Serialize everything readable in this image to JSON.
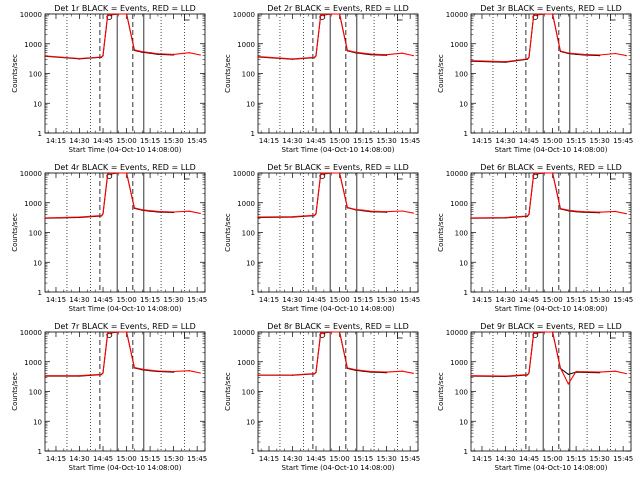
{
  "chart_data": [
    {
      "type": "line",
      "title": "Det 1r BLACK = Events, RED = LLD",
      "xlabel": "Start Time (04-Oct-10 14:08:00)",
      "ylabel": "Counts/sec",
      "y_scale": "log",
      "ylim": [
        1,
        10000
      ],
      "xlim": [
        "14:08",
        "15:50"
      ],
      "xtick_labels": [
        "14:15",
        "14:30",
        "14:45",
        "15:00",
        "15:15",
        "15:30",
        "15:45"
      ],
      "ytick_labels": [
        "1",
        "10",
        "100",
        "1000",
        "10000"
      ],
      "series": [
        {
          "color": "#000000",
          "x": [
            "14:08",
            "14:30",
            "14:44",
            "14:45",
            "14:48",
            "14:55",
            "15:00",
            "15:05",
            "15:10",
            "15:15",
            "15:20",
            "15:30"
          ],
          "values": [
            380,
            310,
            350,
            400,
            9000,
            10000,
            10000,
            600,
            520,
            480,
            440,
            420
          ]
        },
        {
          "color": "#ff0000",
          "x": [
            "14:08",
            "14:30",
            "14:44",
            "14:45",
            "14:48",
            "14:55",
            "15:00",
            "15:05",
            "15:10",
            "15:15",
            "15:20",
            "15:30",
            "15:40",
            "15:47"
          ],
          "values": [
            390,
            320,
            360,
            410,
            9500,
            10000,
            10000,
            620,
            540,
            500,
            460,
            440,
            500,
            420
          ]
        }
      ]
    },
    {
      "type": "line",
      "title": "Det 2r BLACK = Events, RED = LLD",
      "xlabel": "Start Time (04-Oct-10 14:08:00)",
      "ylabel": "Counts/sec",
      "y_scale": "log",
      "ylim": [
        1,
        10000
      ],
      "xlim": [
        "14:08",
        "15:50"
      ],
      "xtick_labels": [
        "14:15",
        "14:30",
        "14:45",
        "15:00",
        "15:15",
        "15:30",
        "15:45"
      ],
      "ytick_labels": [
        "1",
        "10",
        "100",
        "1000",
        "10000"
      ],
      "series": [
        {
          "color": "#000000",
          "x": [
            "14:08",
            "14:30",
            "14:44",
            "14:45",
            "14:48",
            "14:55",
            "15:00",
            "15:05",
            "15:10",
            "15:15",
            "15:20",
            "15:30"
          ],
          "values": [
            360,
            300,
            340,
            390,
            9000,
            10000,
            10000,
            580,
            500,
            460,
            430,
            410
          ]
        },
        {
          "color": "#ff0000",
          "x": [
            "14:08",
            "14:30",
            "14:44",
            "14:45",
            "14:48",
            "14:55",
            "15:00",
            "15:05",
            "15:10",
            "15:15",
            "15:20",
            "15:30",
            "15:40",
            "15:47"
          ],
          "values": [
            370,
            310,
            350,
            400,
            9500,
            10000,
            10000,
            600,
            520,
            480,
            450,
            430,
            480,
            400
          ]
        }
      ]
    },
    {
      "type": "line",
      "title": "Det 3r BLACK = Events, RED = LLD",
      "xlabel": "Start Time (04-Oct-10 14:08:00)",
      "ylabel": "Counts/sec",
      "y_scale": "log",
      "ylim": [
        1,
        10000
      ],
      "xlim": [
        "14:08",
        "15:50"
      ],
      "xtick_labels": [
        "14:15",
        "14:30",
        "14:45",
        "15:00",
        "15:15",
        "15:30",
        "15:45"
      ],
      "ytick_labels": [
        "1",
        "10",
        "100",
        "1000",
        "10000"
      ],
      "series": [
        {
          "color": "#000000",
          "x": [
            "14:08",
            "14:30",
            "14:44",
            "14:45",
            "14:48",
            "14:55",
            "15:00",
            "15:05",
            "15:10",
            "15:15",
            "15:20",
            "15:30"
          ],
          "values": [
            260,
            240,
            300,
            350,
            9000,
            10000,
            10000,
            550,
            470,
            440,
            420,
            400
          ]
        },
        {
          "color": "#ff0000",
          "x": [
            "14:08",
            "14:30",
            "14:44",
            "14:45",
            "14:48",
            "14:55",
            "15:00",
            "15:05",
            "15:10",
            "15:15",
            "15:20",
            "15:30",
            "15:40",
            "15:47"
          ],
          "values": [
            270,
            250,
            310,
            360,
            9500,
            10000,
            10000,
            570,
            490,
            460,
            440,
            420,
            470,
            400
          ]
        }
      ]
    },
    {
      "type": "line",
      "title": "Det 4r BLACK = Events, RED = LLD",
      "xlabel": "Start Time (04-Oct-10 14:08:00)",
      "ylabel": "Counts/sec",
      "y_scale": "log",
      "ylim": [
        1,
        10000
      ],
      "xlim": [
        "14:08",
        "15:50"
      ],
      "xtick_labels": [
        "14:15",
        "14:30",
        "14:45",
        "15:00",
        "15:15",
        "15:30",
        "15:45"
      ],
      "ytick_labels": [
        "1",
        "10",
        "100",
        "1000",
        "10000"
      ],
      "series": [
        {
          "color": "#000000",
          "x": [
            "14:08",
            "14:30",
            "14:44",
            "14:45",
            "14:48",
            "14:55",
            "15:00",
            "15:05",
            "15:10",
            "15:15",
            "15:20",
            "15:30"
          ],
          "values": [
            300,
            320,
            360,
            420,
            9000,
            10000,
            10000,
            650,
            560,
            520,
            490,
            470
          ]
        },
        {
          "color": "#ff0000",
          "x": [
            "14:08",
            "14:30",
            "14:44",
            "14:45",
            "14:48",
            "14:55",
            "15:00",
            "15:05",
            "15:10",
            "15:15",
            "15:20",
            "15:30",
            "15:40",
            "15:47"
          ],
          "values": [
            310,
            330,
            370,
            430,
            9500,
            10000,
            10000,
            670,
            580,
            540,
            510,
            490,
            520,
            440
          ]
        }
      ]
    },
    {
      "type": "line",
      "title": "Det 5r BLACK = Events, RED = LLD",
      "xlabel": "Start Time (04-Oct-10 14:08:00)",
      "ylabel": "Counts/sec",
      "y_scale": "log",
      "ylim": [
        1,
        10000
      ],
      "xlim": [
        "14:08",
        "15:50"
      ],
      "xtick_labels": [
        "14:15",
        "14:30",
        "14:45",
        "15:00",
        "15:15",
        "15:30",
        "15:45"
      ],
      "ytick_labels": [
        "1",
        "10",
        "100",
        "1000",
        "10000"
      ],
      "series": [
        {
          "color": "#000000",
          "x": [
            "14:08",
            "14:30",
            "14:44",
            "14:45",
            "14:48",
            "14:55",
            "15:00",
            "15:05",
            "15:10",
            "15:15",
            "15:20",
            "15:30"
          ],
          "values": [
            320,
            330,
            370,
            430,
            9000,
            10000,
            10000,
            680,
            580,
            540,
            500,
            480
          ]
        },
        {
          "color": "#ff0000",
          "x": [
            "14:08",
            "14:30",
            "14:44",
            "14:45",
            "14:48",
            "14:55",
            "15:00",
            "15:05",
            "15:10",
            "15:15",
            "15:20",
            "15:30",
            "15:40",
            "15:47"
          ],
          "values": [
            330,
            340,
            380,
            440,
            9500,
            10000,
            10000,
            700,
            600,
            560,
            520,
            500,
            530,
            450
          ]
        }
      ]
    },
    {
      "type": "line",
      "title": "Det 6r BLACK = Events, RED = LLD",
      "xlabel": "Start Time (04-Oct-10 14:08:00)",
      "ylabel": "Counts/sec",
      "y_scale": "log",
      "ylim": [
        1,
        10000
      ],
      "xlim": [
        "14:08",
        "15:50"
      ],
      "xtick_labels": [
        "14:15",
        "14:30",
        "14:45",
        "15:00",
        "15:15",
        "15:30",
        "15:45"
      ],
      "ytick_labels": [
        "1",
        "10",
        "100",
        "1000",
        "10000"
      ],
      "series": [
        {
          "color": "#000000",
          "x": [
            "14:08",
            "14:30",
            "14:44",
            "14:45",
            "14:48",
            "14:55",
            "15:00",
            "15:05",
            "15:10",
            "15:15",
            "15:20",
            "15:30"
          ],
          "values": [
            300,
            310,
            350,
            410,
            9000,
            10000,
            10000,
            620,
            540,
            500,
            480,
            460
          ]
        },
        {
          "color": "#ff0000",
          "x": [
            "14:08",
            "14:30",
            "14:44",
            "14:45",
            "14:48",
            "14:55",
            "15:00",
            "15:05",
            "15:10",
            "15:15",
            "15:20",
            "15:30",
            "15:40",
            "15:47"
          ],
          "values": [
            310,
            320,
            360,
            420,
            9500,
            10000,
            10000,
            640,
            560,
            520,
            500,
            480,
            510,
            430
          ]
        }
      ]
    },
    {
      "type": "line",
      "title": "Det 7r BLACK = Events, RED = LLD",
      "xlabel": "Start Time (04-Oct-10 14:08:00)",
      "ylabel": "Counts/sec",
      "y_scale": "log",
      "ylim": [
        1,
        10000
      ],
      "xlim": [
        "14:08",
        "15:50"
      ],
      "xtick_labels": [
        "14:15",
        "14:30",
        "14:45",
        "15:00",
        "15:15",
        "15:30",
        "15:45"
      ],
      "ytick_labels": [
        "1",
        "10",
        "100",
        "1000",
        "10000"
      ],
      "series": [
        {
          "color": "#000000",
          "x": [
            "14:08",
            "14:30",
            "14:44",
            "14:45",
            "14:48",
            "14:55",
            "15:00",
            "15:05",
            "15:10",
            "15:15",
            "15:20",
            "15:30"
          ],
          "values": [
            330,
            330,
            370,
            420,
            9000,
            10000,
            10000,
            620,
            540,
            500,
            470,
            450
          ]
        },
        {
          "color": "#ff0000",
          "x": [
            "14:08",
            "14:30",
            "14:44",
            "14:45",
            "14:48",
            "14:55",
            "15:00",
            "15:05",
            "15:10",
            "15:15",
            "15:20",
            "15:30",
            "15:40",
            "15:47"
          ],
          "values": [
            340,
            340,
            380,
            430,
            9500,
            10000,
            10000,
            640,
            560,
            520,
            490,
            470,
            500,
            420
          ]
        }
      ]
    },
    {
      "type": "line",
      "title": "Det 8r BLACK = Events, RED = LLD",
      "xlabel": "Start Time (04-Oct-10 14:08:00)",
      "ylabel": "Counts/sec",
      "y_scale": "log",
      "ylim": [
        1,
        10000
      ],
      "xlim": [
        "14:08",
        "15:50"
      ],
      "xtick_labels": [
        "14:15",
        "14:30",
        "14:45",
        "15:00",
        "15:15",
        "15:30",
        "15:45"
      ],
      "ytick_labels": [
        "1",
        "10",
        "100",
        "1000",
        "10000"
      ],
      "series": [
        {
          "color": "#000000",
          "x": [
            "14:08",
            "14:30",
            "14:44",
            "14:45",
            "14:48",
            "14:55",
            "15:00",
            "15:05",
            "15:10",
            "15:15",
            "15:20",
            "15:30"
          ],
          "values": [
            350,
            350,
            390,
            440,
            9000,
            10000,
            10000,
            600,
            520,
            480,
            450,
            430
          ]
        },
        {
          "color": "#ff0000",
          "x": [
            "14:08",
            "14:30",
            "14:44",
            "14:45",
            "14:48",
            "14:55",
            "15:00",
            "15:05",
            "15:10",
            "15:15",
            "15:20",
            "15:30",
            "15:40",
            "15:47"
          ],
          "values": [
            360,
            360,
            400,
            450,
            9500,
            10000,
            10000,
            620,
            540,
            500,
            470,
            450,
            480,
            410
          ]
        }
      ]
    },
    {
      "type": "line",
      "title": "Det 9r BLACK = Events, RED = LLD",
      "xlabel": "Start Time (04-Oct-10 14:08:00)",
      "ylabel": "Counts/sec",
      "y_scale": "log",
      "ylim": [
        1,
        10000
      ],
      "xlim": [
        "14:08",
        "15:50"
      ],
      "xtick_labels": [
        "14:15",
        "14:30",
        "14:45",
        "15:00",
        "15:15",
        "15:30",
        "15:45"
      ],
      "ytick_labels": [
        "1",
        "10",
        "100",
        "1000",
        "10000"
      ],
      "series": [
        {
          "color": "#000000",
          "x": [
            "14:08",
            "14:30",
            "14:44",
            "14:45",
            "14:48",
            "14:55",
            "15:00",
            "15:05",
            "15:10",
            "15:15",
            "15:20",
            "15:30"
          ],
          "values": [
            330,
            320,
            360,
            420,
            9000,
            10000,
            10000,
            600,
            380,
            450,
            440,
            430
          ]
        },
        {
          "color": "#ff0000",
          "x": [
            "14:08",
            "14:30",
            "14:44",
            "14:45",
            "14:48",
            "14:55",
            "15:00",
            "15:05",
            "15:10",
            "15:15",
            "15:20",
            "15:30",
            "15:40",
            "15:47"
          ],
          "values": [
            340,
            330,
            370,
            430,
            9500,
            10000,
            10000,
            620,
            180,
            470,
            460,
            450,
            480,
            400
          ]
        }
      ]
    }
  ]
}
